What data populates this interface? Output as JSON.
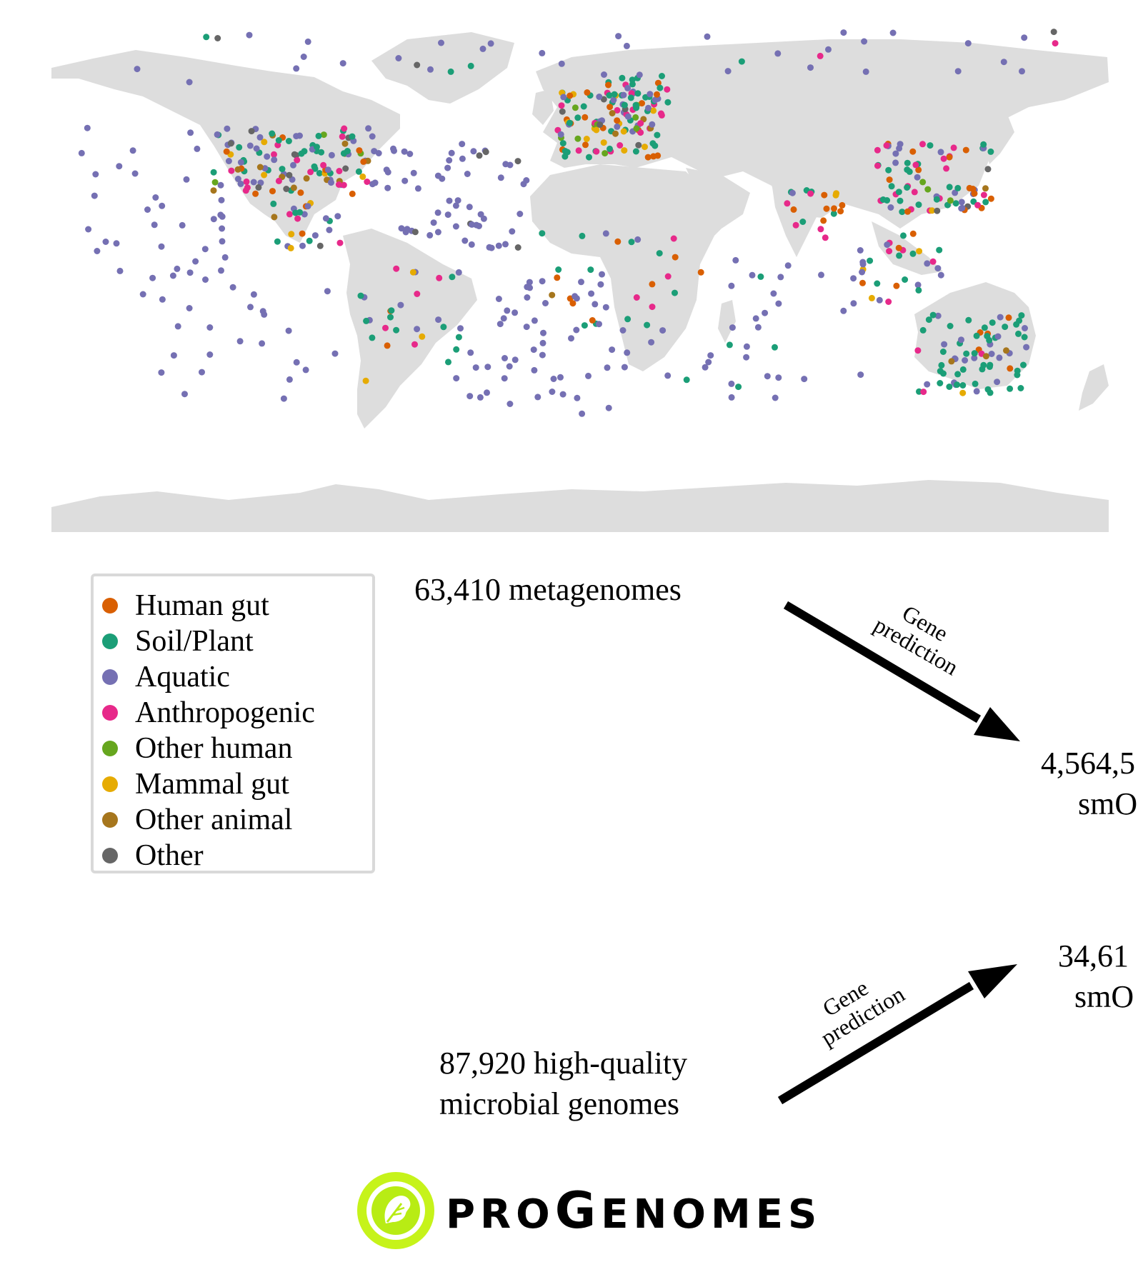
{
  "map": {
    "land_color": "#dddddd",
    "categories": [
      {
        "name": "Human gut",
        "color": "#d95f02"
      },
      {
        "name": "Soil/Plant",
        "color": "#1b9e77"
      },
      {
        "name": "Aquatic",
        "color": "#7570b3"
      },
      {
        "name": "Anthropogenic",
        "color": "#e7298a"
      },
      {
        "name": "Other human",
        "color": "#66a61e"
      },
      {
        "name": "Mammal gut",
        "color": "#e6ab02"
      },
      {
        "name": "Other animal",
        "color": "#a6761d"
      },
      {
        "name": "Other",
        "color": "#666666"
      }
    ],
    "sample_clusters": [
      {
        "region": "North America",
        "lon": [
          -125,
          -70
        ],
        "lat": [
          28,
          50
        ],
        "n": 120,
        "mix": [
          0.12,
          0.2,
          0.28,
          0.16,
          0.02,
          0.08,
          0.06,
          0.08
        ]
      },
      {
        "region": "Europe",
        "lon": [
          -8,
          28
        ],
        "lat": [
          40,
          62
        ],
        "n": 110,
        "mix": [
          0.18,
          0.2,
          0.16,
          0.18,
          0.08,
          0.1,
          0.05,
          0.05
        ]
      },
      {
        "region": "Scandinavia",
        "lon": [
          8,
          30
        ],
        "lat": [
          56,
          68
        ],
        "n": 25,
        "mix": [
          0.1,
          0.6,
          0.2,
          0.1,
          0,
          0,
          0,
          0
        ]
      },
      {
        "region": "East Asia",
        "lon": [
          100,
          140
        ],
        "lat": [
          22,
          45
        ],
        "n": 80,
        "mix": [
          0.18,
          0.3,
          0.18,
          0.22,
          0.02,
          0.04,
          0.03,
          0.03
        ]
      },
      {
        "region": "South Asia",
        "lon": [
          70,
          90
        ],
        "lat": [
          10,
          30
        ],
        "n": 20,
        "mix": [
          0.3,
          0.3,
          0.15,
          0.2,
          0,
          0.05,
          0,
          0
        ]
      },
      {
        "region": "Australia",
        "lon": [
          115,
          153
        ],
        "lat": [
          -38,
          -12
        ],
        "n": 75,
        "mix": [
          0.03,
          0.55,
          0.35,
          0.03,
          0,
          0.02,
          0.02,
          0
        ]
      },
      {
        "region": "South America",
        "lon": [
          -75,
          -40
        ],
        "lat": [
          -35,
          5
        ],
        "n": 30,
        "mix": [
          0.05,
          0.5,
          0.25,
          0.1,
          0,
          0.05,
          0.05,
          0
        ]
      },
      {
        "region": "Africa",
        "lon": [
          -15,
          45
        ],
        "lat": [
          -35,
          15
        ],
        "n": 40,
        "mix": [
          0.15,
          0.35,
          0.25,
          0.15,
          0,
          0.05,
          0.05,
          0
        ]
      },
      {
        "region": "Central America",
        "lon": [
          -105,
          -80
        ],
        "lat": [
          10,
          25
        ],
        "n": 25,
        "mix": [
          0.05,
          0.15,
          0.55,
          0.1,
          0,
          0.05,
          0.05,
          0.05
        ]
      },
      {
        "region": "Southeast Asia",
        "lon": [
          95,
          125
        ],
        "lat": [
          -8,
          15
        ],
        "n": 25,
        "mix": [
          0.05,
          0.4,
          0.3,
          0.15,
          0.05,
          0.05,
          0,
          0
        ]
      },
      {
        "region": "North Atlantic Ocean",
        "lon": [
          -70,
          -15
        ],
        "lat": [
          10,
          45
        ],
        "n": 60,
        "mix": [
          0,
          0,
          0.92,
          0,
          0,
          0,
          0,
          0.08
        ]
      },
      {
        "region": "South Atlantic Ocean",
        "lon": [
          -40,
          10
        ],
        "lat": [
          -45,
          0
        ],
        "n": 45,
        "mix": [
          0,
          0,
          1,
          0,
          0,
          0,
          0,
          0
        ]
      },
      {
        "region": "North Pacific Ocean",
        "lon": [
          -170,
          -120
        ],
        "lat": [
          0,
          50
        ],
        "n": 35,
        "mix": [
          0,
          0,
          1,
          0,
          0,
          0,
          0,
          0
        ]
      },
      {
        "region": "South Pacific Ocean",
        "lon": [
          -150,
          -80
        ],
        "lat": [
          -40,
          0
        ],
        "n": 25,
        "mix": [
          0,
          0,
          1,
          0,
          0,
          0,
          0,
          0
        ]
      },
      {
        "region": "Indian Ocean",
        "lon": [
          40,
          100
        ],
        "lat": [
          -40,
          10
        ],
        "n": 35,
        "mix": [
          0,
          0.1,
          0.9,
          0,
          0,
          0,
          0,
          0
        ]
      },
      {
        "region": "Arctic",
        "lon": [
          -170,
          170
        ],
        "lat": [
          65,
          82
        ],
        "n": 40,
        "mix": [
          0.02,
          0.08,
          0.8,
          0.02,
          0,
          0,
          0,
          0.08
        ]
      }
    ]
  },
  "legend": {
    "items": [
      {
        "label": "Human gut",
        "color": "#d95f02"
      },
      {
        "label": "Soil/Plant",
        "color": "#1b9e77"
      },
      {
        "label": "Aquatic",
        "color": "#7570b3"
      },
      {
        "label": "Anthropogenic",
        "color": "#e7298a"
      },
      {
        "label": "Other human",
        "color": "#66a61e"
      },
      {
        "label": "Mammal gut",
        "color": "#e6ab02"
      },
      {
        "label": "Other animal",
        "color": "#a6761d"
      },
      {
        "label": "Other",
        "color": "#666666"
      }
    ]
  },
  "flow": {
    "metagenomes": "63,410 metagenomes",
    "genomes_line1": "87,920 high-quality",
    "genomes_line2": "microbial genomes",
    "arrow_label_line1": "Gene",
    "arrow_label_line2": "prediction",
    "result_top_line1": "4,564,5",
    "result_top_line2": "smO",
    "result_bottom_line1": "34,61",
    "result_bottom_line2": "smO"
  },
  "logo": {
    "text_small1": "PRO",
    "text_big": "G",
    "text_small2": "ENOMES",
    "ring_color": "#c6f31a"
  }
}
